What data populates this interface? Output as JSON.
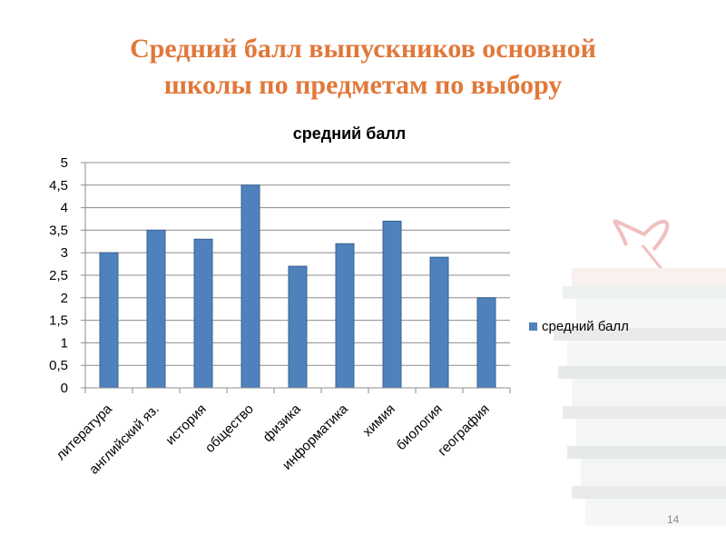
{
  "slide": {
    "title_line1": "Средний балл выпускников основной",
    "title_line2": "школы по предметам по выбору",
    "page_number": "14",
    "title_color": "#e0783a"
  },
  "chart_data": {
    "type": "bar",
    "title": "средний балл",
    "categories": [
      "литература",
      "английский яз.",
      "история",
      "общество",
      "физика",
      "информатика",
      "химия",
      "биология",
      "география"
    ],
    "series": [
      {
        "name": "средний балл",
        "values": [
          3.0,
          3.5,
          3.3,
          4.5,
          2.7,
          3.2,
          3.7,
          2.9,
          2.0
        ],
        "color": "#4f81bd"
      }
    ],
    "ylim": [
      0,
      5
    ],
    "yticks": [
      "0",
      "0,5",
      "1",
      "1,5",
      "2",
      "2,5",
      "3",
      "3,5",
      "4",
      "4,5",
      "5"
    ],
    "grid": true,
    "legend_position": "right"
  }
}
